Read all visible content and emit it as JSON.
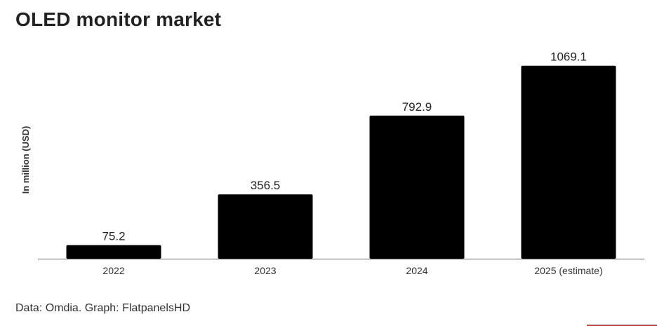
{
  "chart_data": {
    "type": "bar",
    "title": "OLED monitor market",
    "ylabel": "In million (USD)",
    "xlabel": "",
    "categories": [
      "2022",
      "2023",
      "2024",
      "2025 (estimate)"
    ],
    "values": [
      75.2,
      356.5,
      792.9,
      1069.1
    ],
    "value_labels": [
      "75.2",
      "356.5",
      "792.9",
      "1069.1"
    ],
    "ylim": [
      0,
      1200
    ],
    "grid": false,
    "legend": "none",
    "bar_color": "#000000"
  },
  "source": "Data: Omdia. Graph: FlatpanelsHD",
  "colors": {
    "accent": "#e8302a",
    "axis": "#666666"
  }
}
